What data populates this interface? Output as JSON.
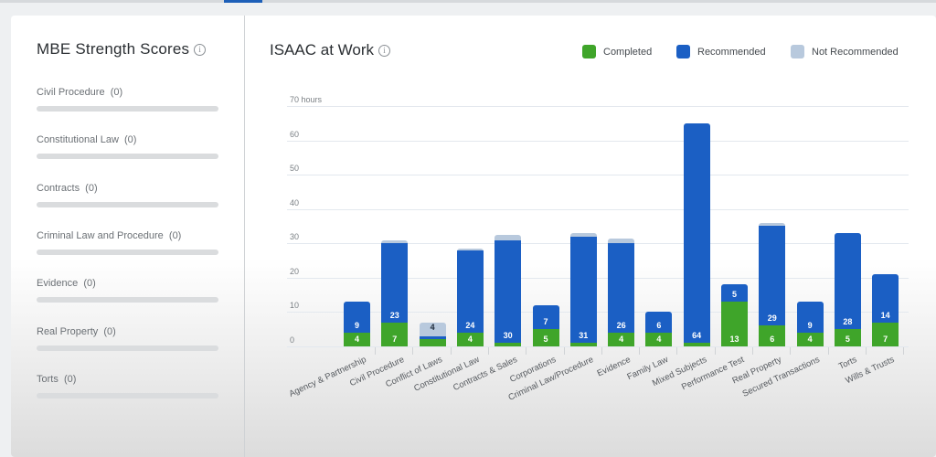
{
  "sidebar": {
    "title": "MBE Strength Scores",
    "info_icon": "info-icon",
    "items": [
      {
        "label": "Civil Procedure",
        "score": "(0)"
      },
      {
        "label": "Constitutional Law",
        "score": "(0)"
      },
      {
        "label": "Contracts",
        "score": "(0)"
      },
      {
        "label": "Criminal Law and Procedure",
        "score": "(0)"
      },
      {
        "label": "Evidence",
        "score": "(0)"
      },
      {
        "label": "Real Property",
        "score": "(0)"
      },
      {
        "label": "Torts",
        "score": "(0)"
      }
    ]
  },
  "main": {
    "title": "ISAAC at Work",
    "info_icon": "info-icon",
    "legend": [
      {
        "label": "Completed",
        "color": "#3fa52a"
      },
      {
        "label": "Recommended",
        "color": "#1b5fc4"
      },
      {
        "label": "Not Recommended",
        "color": "#b8c9dd"
      }
    ]
  },
  "chart_data": {
    "type": "bar",
    "stacked": true,
    "title": "ISAAC at Work",
    "xlabel": "",
    "ylabel": "hours",
    "ylim": [
      0,
      70
    ],
    "yticks": [
      "0",
      "10",
      "20",
      "30",
      "40",
      "50",
      "60",
      "70 hours"
    ],
    "grid": true,
    "legend_position": "top-right",
    "categories": [
      "Agency & Partnership",
      "Civil Procedure",
      "Conflict of Laws",
      "Constitutional Law",
      "Contracts & Sales",
      "Corporations",
      "Criminal Law/Procedure",
      "Evidence",
      "Family Law",
      "Mixed Subjects",
      "Performance Test",
      "Real Property",
      "Secured Transactions",
      "Torts",
      "Wills & Trusts"
    ],
    "series": [
      {
        "name": "Completed",
        "color": "#3fa52a",
        "values": [
          4,
          7,
          2,
          4,
          1,
          5,
          1,
          4,
          4,
          1,
          13,
          6,
          4,
          5,
          7
        ],
        "labels": [
          "4",
          "7",
          "",
          "4",
          "",
          "5",
          "",
          "4",
          "4",
          "",
          "13",
          "6",
          "4",
          "5",
          "7"
        ]
      },
      {
        "name": "Recommended",
        "color": "#1b5fc4",
        "values": [
          9,
          23,
          1,
          24,
          30,
          7,
          31,
          26,
          6,
          64,
          5,
          29,
          9,
          28,
          14
        ],
        "labels": [
          "9",
          "23",
          "",
          "24",
          "30",
          "7",
          "31",
          "26",
          "6",
          "64",
          "5",
          "29",
          "9",
          "28",
          "14"
        ]
      },
      {
        "name": "Not Recommended",
        "color": "#b8c9dd",
        "values": [
          0,
          1,
          4,
          0.5,
          1.5,
          0,
          1,
          1.5,
          0,
          0,
          0,
          1,
          0,
          0,
          0
        ],
        "labels": [
          "",
          "",
          "4",
          "",
          "",
          "",
          "",
          "",
          "",
          "",
          "",
          "",
          "",
          "",
          ""
        ]
      }
    ]
  }
}
